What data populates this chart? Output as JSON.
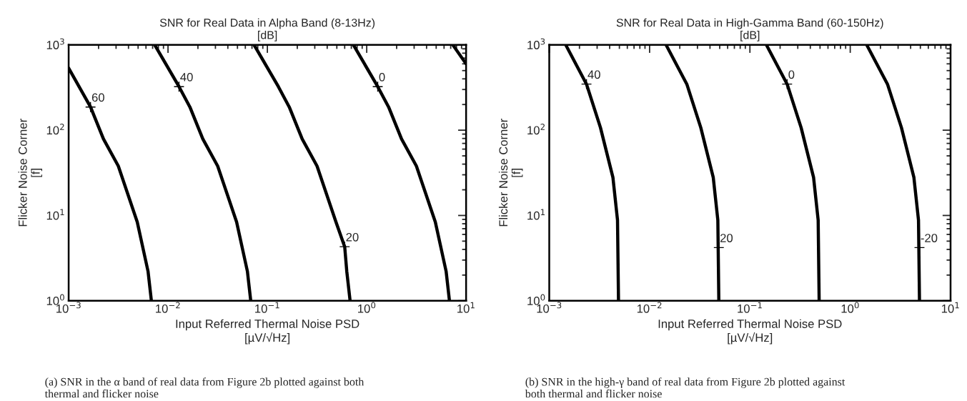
{
  "chart_data": [
    {
      "type": "line",
      "title": "SNR for Real Data in Alpha Band (8-13Hz)\n[dB]",
      "xlabel": "Input Referred Thermal Noise PSD\n[µV/√Hz]",
      "ylabel": "Flicker Noise Corner\n[f]",
      "log": "xy",
      "grid": false,
      "legend": false,
      "xlim": [
        0.001,
        10
      ],
      "ylim": [
        1,
        1000
      ],
      "xticks": [
        {
          "value": 0.001,
          "label": "10$^{−3}$"
        },
        {
          "value": 0.01,
          "label": "10$^{−2}$"
        },
        {
          "value": 0.1,
          "label": "10$^{−1}$"
        },
        {
          "value": 1,
          "label": "10$^{0}$"
        },
        {
          "value": 10,
          "label": "10$^{1}$"
        }
      ],
      "yticks": [
        {
          "value": 1,
          "label": "10$^{0}$"
        },
        {
          "value": 10,
          "label": "10$^{1}$"
        },
        {
          "value": 100,
          "label": "10$^{2}$"
        },
        {
          "value": 1000,
          "label": "10$^{3}$"
        }
      ],
      "series": [
        {
          "color": "#000000",
          "x": [
            0.001,
            0.00166,
            0.00224,
            0.00316,
            0.0049,
            0.0063,
            0.0068
          ],
          "values": [
            533,
            187,
            79,
            38,
            8.4,
            2.2,
            1
          ]
        },
        {
          "color": "#000000",
          "x": [
            0.00735,
            0.0129,
            0.0166,
            0.0224,
            0.0316,
            0.049,
            0.063,
            0.068
          ],
          "values": [
            1000,
            324,
            187,
            79,
            38,
            8.4,
            2.2,
            1
          ]
        },
        {
          "color": "#000000",
          "x": [
            0.0735,
            0.129,
            0.166,
            0.224,
            0.316,
            0.49,
            0.6,
            0.63,
            0.68
          ],
          "values": [
            1000,
            324,
            187,
            79,
            38,
            8.4,
            4.3,
            2.2,
            1
          ]
        },
        {
          "color": "#000000",
          "x": [
            0.735,
            1.29,
            1.66,
            2.24,
            3.16,
            4.9,
            6.3,
            6.8
          ],
          "values": [
            1000,
            324,
            187,
            79,
            38,
            8.4,
            2.2,
            1
          ]
        },
        {
          "color": "#000000",
          "x": [
            7.35,
            10
          ],
          "values": [
            1000,
            600
          ]
        }
      ],
      "annotations": [
        {
          "text": "60",
          "x": 0.00166,
          "y": 187
        },
        {
          "text": "40",
          "x": 0.0129,
          "y": 324
        },
        {
          "text": "20",
          "x": 0.6,
          "y": 4.3
        },
        {
          "text": "0",
          "x": 1.29,
          "y": 324
        },
        "(a) SNR in the α band of real data from Figure 2b plotted against both\nthermal and flicker noise"
      ]
    },
    {
      "type": "line",
      "title": "SNR for Real Data in High-Gamma Band (60-150Hz)\n[dB]",
      "xlabel": "Input Referred Thermal Noise PSD\n[µV/√Hz]",
      "ylabel": "Flicker Noise Corner\n[f]",
      "log": "xy",
      "grid": false,
      "legend": false,
      "xlim": [
        0.001,
        10
      ],
      "ylim": [
        1,
        1000
      ],
      "xticks": [
        {
          "value": 0.001,
          "label": "10$^{−3}$"
        },
        {
          "value": 0.01,
          "label": "10$^{−2}$"
        },
        {
          "value": 0.1,
          "label": "10$^{−1}$"
        },
        {
          "value": 1,
          "label": "10$^{0}$"
        },
        {
          "value": 10,
          "label": "10$^{1}$"
        }
      ],
      "yticks": [
        {
          "value": 1,
          "label": "10$^{0}$"
        },
        {
          "value": 10,
          "label": "10$^{1}$"
        },
        {
          "value": 100,
          "label": "10$^{2}$"
        },
        {
          "value": 1000,
          "label": "10$^{3}$"
        }
      ],
      "series": [
        {
          "color": "#000000",
          "x": [
            0.00146,
            0.00235,
            0.00324,
            0.00431,
            0.00479,
            0.0049
          ],
          "values": [
            1000,
            347,
            107,
            28,
            8.8,
            1
          ]
        },
        {
          "color": "#000000",
          "x": [
            0.0146,
            0.0235,
            0.0324,
            0.0431,
            0.0479,
            0.049
          ],
          "values": [
            1000,
            347,
            107,
            28,
            8.8,
            1
          ]
        },
        {
          "color": "#000000",
          "x": [
            0.146,
            0.235,
            0.324,
            0.431,
            0.479,
            0.49
          ],
          "values": [
            1000,
            347,
            107,
            28,
            8.8,
            1
          ]
        },
        {
          "color": "#000000",
          "x": [
            1.46,
            2.35,
            3.24,
            4.31,
            4.79,
            4.9
          ],
          "values": [
            1000,
            347,
            107,
            28,
            8.8,
            1
          ]
        }
      ],
      "annotations": [
        {
          "text": "40",
          "x": 0.00235,
          "y": 347
        },
        {
          "text": "20",
          "x": 0.049,
          "y": 4.2
        },
        {
          "text": "0",
          "x": 0.235,
          "y": 347
        },
        {
          "text": "-20",
          "x": 4.9,
          "y": 4.2
        },
        "(b) SNR in the high-γ band of real data from Figure 2b plotted against\nboth thermal and flicker noise"
      ]
    }
  ]
}
